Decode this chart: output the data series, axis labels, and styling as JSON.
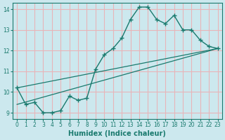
{
  "xlabel": "Humidex (Indice chaleur)",
  "ylabel": "",
  "bg_color": "#cce8ee",
  "grid_color": "#e8b4b8",
  "line_color": "#1a7a6e",
  "xlim": [
    -0.5,
    23.5
  ],
  "ylim": [
    8.7,
    14.3
  ],
  "xticks": [
    0,
    1,
    2,
    3,
    4,
    5,
    6,
    7,
    8,
    9,
    10,
    11,
    12,
    13,
    14,
    15,
    16,
    17,
    18,
    19,
    20,
    21,
    22,
    23
  ],
  "yticks": [
    9,
    10,
    11,
    12,
    13,
    14
  ],
  "main_x": [
    0,
    1,
    2,
    3,
    4,
    5,
    6,
    7,
    8,
    9,
    10,
    11,
    12,
    13,
    14,
    15,
    16,
    17,
    18,
    19,
    20,
    21,
    22,
    23
  ],
  "main_y": [
    10.2,
    9.4,
    9.5,
    9.0,
    9.0,
    9.1,
    9.8,
    9.6,
    9.7,
    11.1,
    11.8,
    12.1,
    12.6,
    13.5,
    14.1,
    14.1,
    13.5,
    13.3,
    13.7,
    13.0,
    13.0,
    12.5,
    12.2,
    12.1
  ],
  "straight_line1_x": [
    0,
    23
  ],
  "straight_line1_y": [
    9.4,
    12.1
  ],
  "straight_line2_x": [
    0,
    23
  ],
  "straight_line2_y": [
    10.2,
    12.1
  ]
}
